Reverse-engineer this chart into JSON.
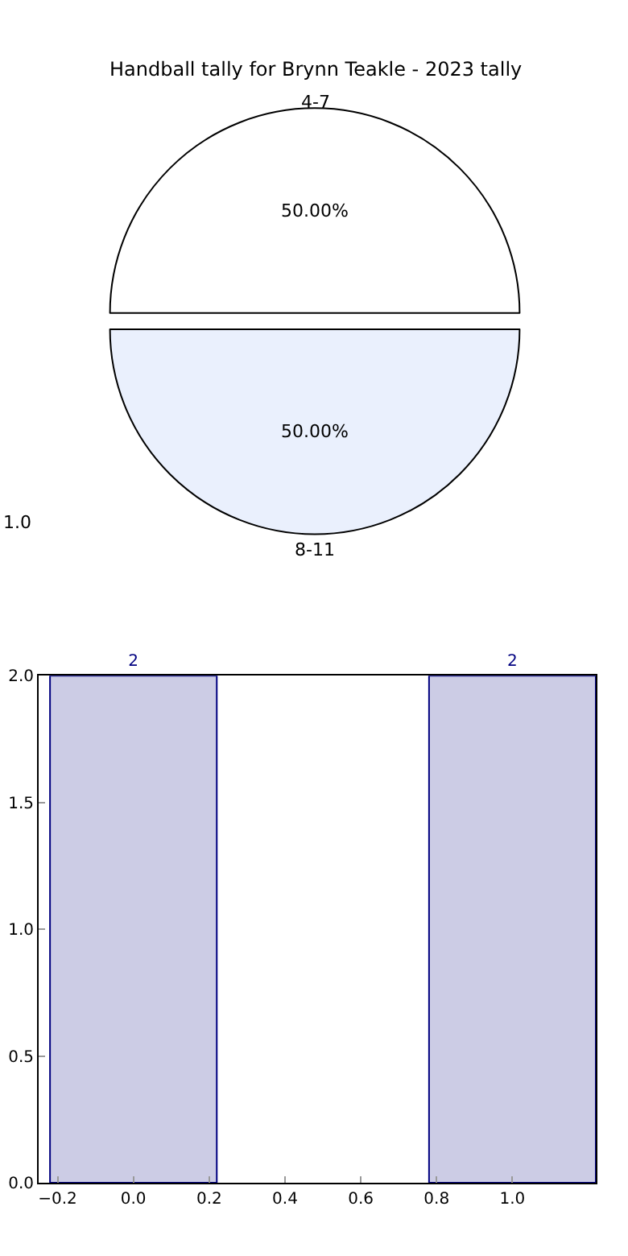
{
  "chart_data": [
    {
      "type": "pie",
      "title": "Handball tally for Brynn Teakle - 2023 tally",
      "categories": [
        "4-7",
        "8-11"
      ],
      "values": [
        50,
        50
      ],
      "colors": [
        "#ffffff",
        "#eaf0fd"
      ],
      "value_labels": [
        "50.00%",
        "50.00%"
      ],
      "annotations": [
        "1.0"
      ]
    },
    {
      "type": "bar",
      "x": [
        0,
        1
      ],
      "values": [
        2,
        2
      ],
      "color": "#ccccE5",
      "data_labels": true,
      "xlim": [
        -0.25,
        1.22
      ],
      "xticks": [
        {
          "value": -0.2,
          "label": "−0.2"
        },
        {
          "value": 0,
          "label": "0.0"
        },
        0.2,
        0.4,
        0.6,
        0.8,
        {
          "value": 1,
          "label": "1.0"
        }
      ],
      "ylim": [
        0,
        2
      ],
      "yticks": [
        {
          "value": 0,
          "label": "0.0"
        },
        0.5,
        {
          "value": 1,
          "label": "1.0"
        },
        1.5,
        {
          "value": 2,
          "label": "2.0"
        }
      ]
    }
  ]
}
